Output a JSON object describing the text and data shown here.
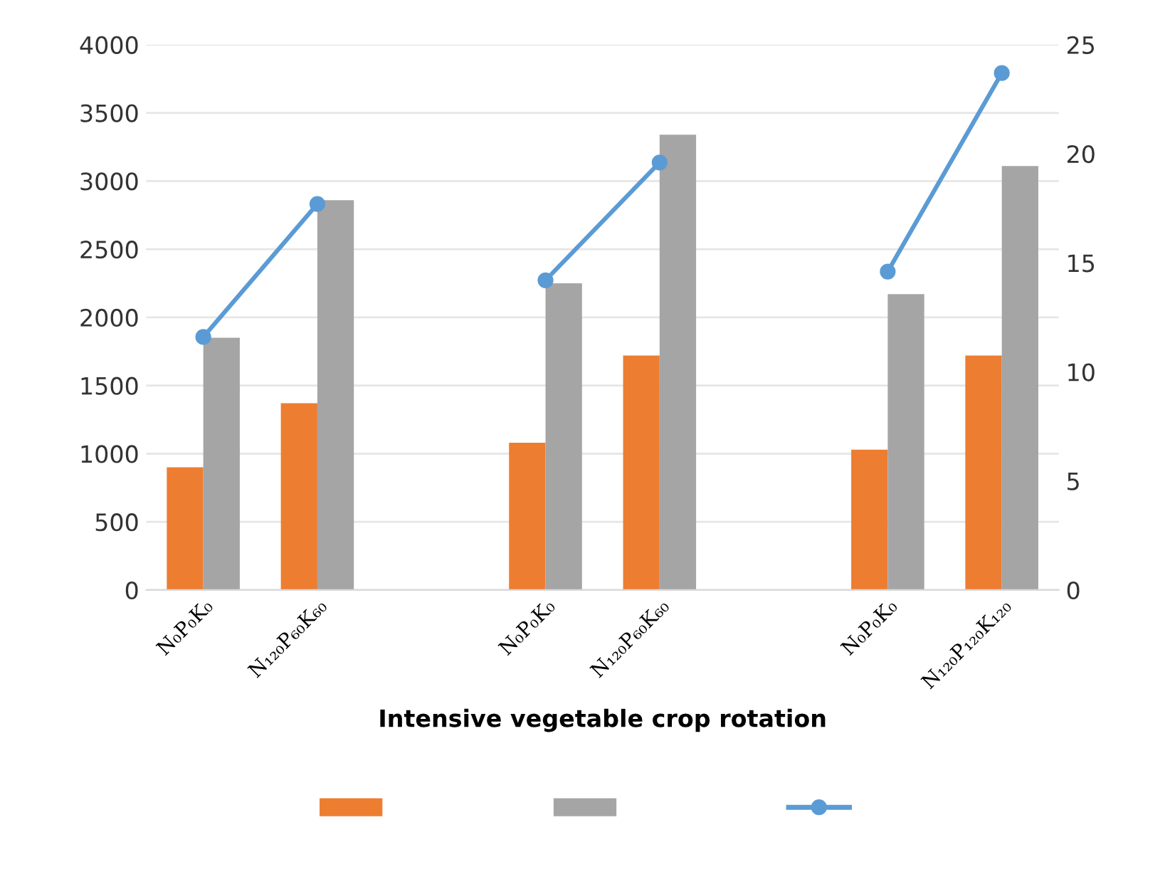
{
  "chart_data": {
    "type": "bar",
    "xlabel": "Intensive vegetable crop rotation",
    "categories": [
      "N₀P₀K₀",
      "N₁₂₀P₆₀K₆₀",
      null,
      "N₀P₀K₀",
      "N₁₂₀P₆₀K₆₀",
      null,
      "N₀P₀K₀",
      "N₁₂₀P₁₂₀K₁₂₀"
    ],
    "series": [
      {
        "color": "#ed7d31",
        "values": [
          900,
          1370,
          null,
          1080,
          1720,
          null,
          1030,
          1720
        ]
      },
      {
        "color": "#a5a5a5",
        "values": [
          1850,
          2860,
          null,
          2250,
          3340,
          null,
          2170,
          3110
        ]
      },
      {
        "type": "line",
        "axis": "y2",
        "color": "#5b9bd5",
        "marker": "circle",
        "values": [
          11.6,
          17.7,
          null,
          14.2,
          19.6,
          null,
          14.6,
          23.7
        ]
      }
    ],
    "ylim": [
      0,
      4000
    ],
    "yticks": [
      0,
      500,
      1000,
      1500,
      2000,
      2500,
      3000,
      3500,
      4000
    ],
    "y2lim": [
      0,
      25
    ],
    "y2ticks": [
      0,
      5,
      10,
      15,
      20,
      25
    ],
    "grid": "y"
  }
}
